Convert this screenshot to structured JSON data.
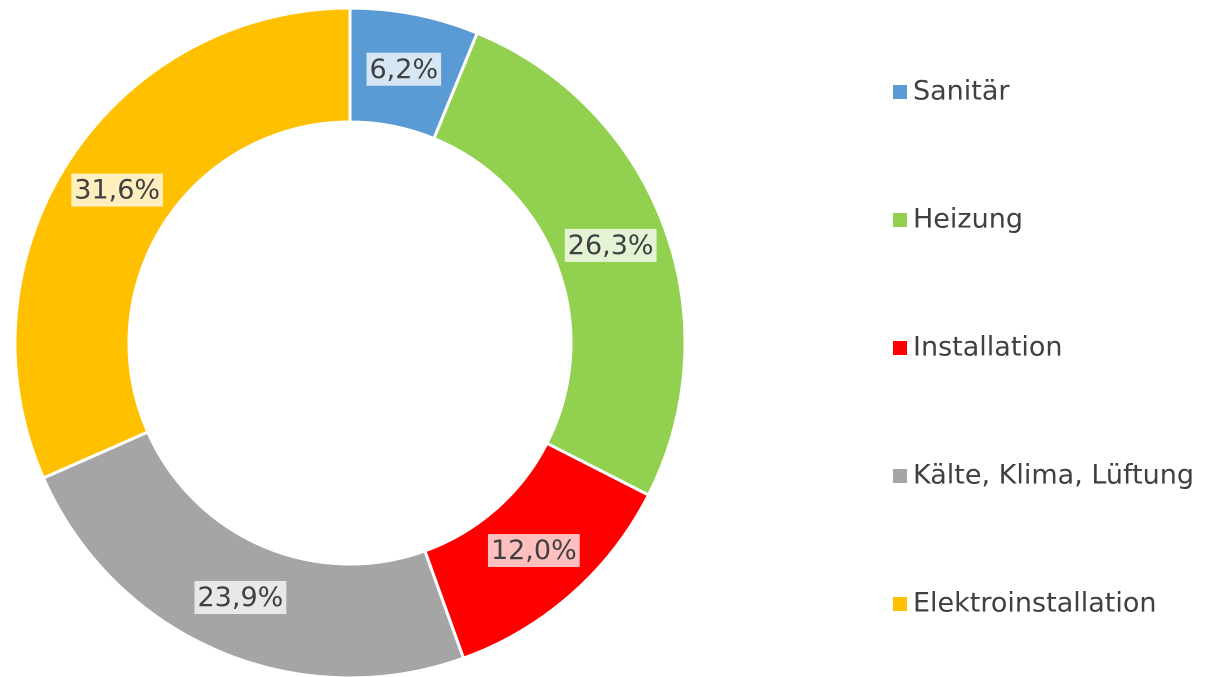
{
  "chart_data": {
    "type": "donut",
    "categories": [
      "Sanitär",
      "Heizung",
      "Installation",
      "Kälte, Klima, Lüftung",
      "Elektroinstallation"
    ],
    "values": [
      6.2,
      26.3,
      12.0,
      23.9,
      31.6
    ],
    "value_labels": [
      "6,2%",
      "26,3%",
      "12,0%",
      "23,9%",
      "31,6%"
    ],
    "colors": [
      "#5b9bd5",
      "#92d050",
      "#ff0000",
      "#a5a5a5",
      "#ffc000"
    ],
    "legend": "right"
  }
}
